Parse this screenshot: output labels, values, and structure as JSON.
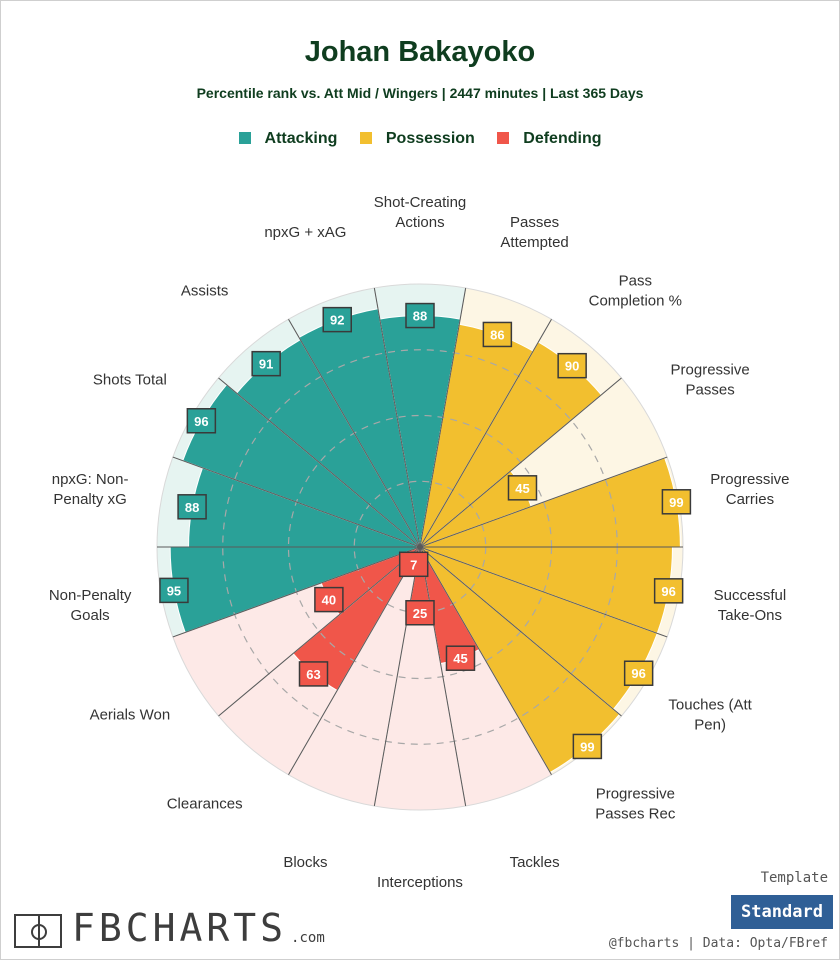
{
  "header": {
    "title": "Johan Bakayoko",
    "subtitle": "Percentile rank vs. Att Mid / Wingers | 2447 minutes | Last 365 Days"
  },
  "legend": [
    {
      "label": "Attacking",
      "color": "#2aa198"
    },
    {
      "label": "Possession",
      "color": "#f2bf2f"
    },
    {
      "label": "Defending",
      "color": "#f0564a"
    }
  ],
  "chart_data": {
    "type": "radar",
    "scale": [
      0,
      100
    ],
    "categories": [
      {
        "label": [
          "Shot-Creating",
          "Actions"
        ],
        "value": 88,
        "group": "Attacking"
      },
      {
        "label": [
          "Passes",
          "Attempted"
        ],
        "value": 86,
        "group": "Possession"
      },
      {
        "label": [
          "Pass",
          "Completion %"
        ],
        "value": 90,
        "group": "Possession"
      },
      {
        "label": [
          "Progressive",
          "Passes"
        ],
        "value": 45,
        "group": "Possession"
      },
      {
        "label": [
          "Progressive",
          "Carries"
        ],
        "value": 99,
        "group": "Possession"
      },
      {
        "label": [
          "Successful",
          "Take-Ons"
        ],
        "value": 96,
        "group": "Possession"
      },
      {
        "label": [
          "Touches (Att",
          "Pen)"
        ],
        "value": 96,
        "group": "Possession"
      },
      {
        "label": [
          "Progressive",
          "Passes Rec"
        ],
        "value": 99,
        "group": "Possession"
      },
      {
        "label": [
          "Tackles"
        ],
        "value": 45,
        "group": "Defending"
      },
      {
        "label": [
          "Interceptions"
        ],
        "value": 25,
        "group": "Defending"
      },
      {
        "label": [
          "Blocks"
        ],
        "value": 7,
        "group": "Defending"
      },
      {
        "label": [
          "Clearances"
        ],
        "value": 63,
        "group": "Defending"
      },
      {
        "label": [
          "Aerials Won"
        ],
        "value": 40,
        "group": "Defending"
      },
      {
        "label": [
          "Non-Penalty",
          "Goals"
        ],
        "value": 95,
        "group": "Attacking"
      },
      {
        "label": [
          "npxG: Non-",
          "Penalty xG"
        ],
        "value": 88,
        "group": "Attacking"
      },
      {
        "label": [
          "Shots Total"
        ],
        "value": 96,
        "group": "Attacking"
      },
      {
        "label": [
          "Assists"
        ],
        "value": 91,
        "group": "Attacking"
      },
      {
        "label": [
          "npxG + xAG"
        ],
        "value": 92,
        "group": "Attacking"
      }
    ],
    "colors": {
      "Attacking": "#2aa198",
      "Possession": "#f2bf2f",
      "Defending": "#f0564a",
      "Attacking_bg": "#e6f4f1",
      "Possession_bg": "#fdf6e4",
      "Defending_bg": "#fde9e7"
    }
  },
  "footer": {
    "logo_text": "FBCHARTS",
    "logo_domain": ".com",
    "template_label": "Template",
    "template_value": "Standard",
    "credit": "@fbcharts  |  Data: Opta/FBref"
  }
}
